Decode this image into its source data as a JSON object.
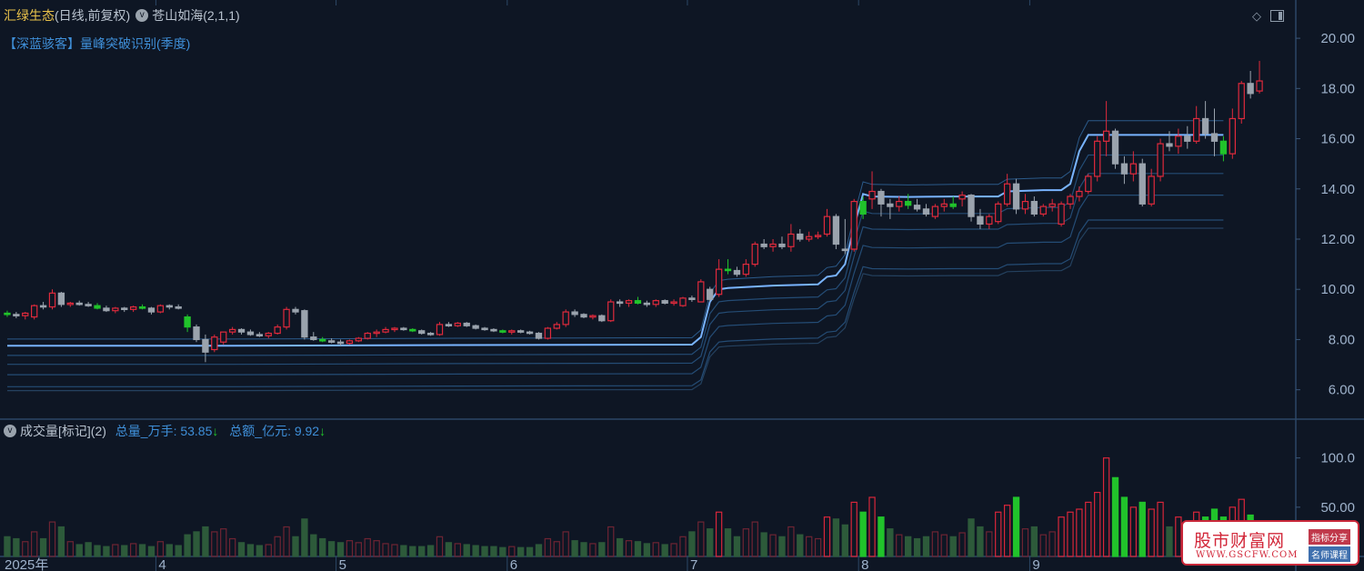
{
  "header": {
    "stock_name": "汇绿生态",
    "period": "(日线,前复权)",
    "indicator_main": "苍山如海(2,1,1)",
    "indicator_sub": "【深蓝骇客】量峰突破识别(季度)"
  },
  "volume_header": {
    "title": "成交量[标记](2)",
    "total_volume": "总量_万手: 53.85",
    "total_amount": "总额_亿元: 9.92",
    "arrow": "↓"
  },
  "watermark": {
    "title": "股市财富网",
    "url": "WWW.GSCFW.COM",
    "tag1": "指标分享",
    "tag2": "名师课程"
  },
  "icons": {
    "diamond": "diamond-icon",
    "panel_toggle": "panel-toggle-icon",
    "circle": "circle-toggle-icon"
  },
  "colors": {
    "background": "#0e1624",
    "up": "#e02a3c",
    "down": "#21c32b",
    "flat": "#9aa3ad",
    "line": "#79b4ff",
    "stock_name": "#e8c14a"
  },
  "chart_data": {
    "type": "candlestick",
    "price_axis": {
      "ticks": [
        20.0,
        18.0,
        16.0,
        14.0,
        12.0,
        10.0,
        8.0,
        6.0
      ],
      "tick_labels": [
        "20.00",
        "18.00",
        "16.00",
        "14.00",
        "12.00",
        "10.00",
        "8.00",
        "6.00"
      ],
      "ylim": [
        5.3,
        20.8
      ]
    },
    "volume_axis": {
      "ticks": [
        100.0,
        50.0
      ],
      "tick_labels": [
        "100.0",
        "50.00"
      ],
      "ylim": [
        0,
        120
      ]
    },
    "x_axis": {
      "labels": [
        "2025年",
        "4",
        "5",
        "6",
        "7",
        "8",
        "9"
      ],
      "label_bar_index": [
        0,
        17,
        37,
        56,
        76,
        95,
        114
      ]
    },
    "bars": [
      [
        9.05,
        9.15,
        8.9,
        9.0,
        20
      ],
      [
        9.0,
        9.1,
        8.85,
        8.95,
        18
      ],
      [
        8.95,
        9.1,
        8.8,
        9.05,
        15
      ],
      [
        8.9,
        9.4,
        8.8,
        9.35,
        25
      ],
      [
        9.35,
        9.5,
        9.2,
        9.3,
        18
      ],
      [
        9.3,
        10.0,
        9.2,
        9.85,
        35
      ],
      [
        9.85,
        9.9,
        9.3,
        9.4,
        30
      ],
      [
        9.4,
        9.5,
        9.3,
        9.45,
        15
      ],
      [
        9.45,
        9.55,
        9.35,
        9.4,
        12
      ],
      [
        9.4,
        9.5,
        9.3,
        9.35,
        14
      ],
      [
        9.35,
        9.45,
        9.2,
        9.25,
        11
      ],
      [
        9.25,
        9.35,
        9.1,
        9.15,
        10
      ],
      [
        9.15,
        9.3,
        9.05,
        9.25,
        12
      ],
      [
        9.25,
        9.3,
        9.1,
        9.2,
        11
      ],
      [
        9.2,
        9.35,
        9.1,
        9.3,
        13
      ],
      [
        9.3,
        9.4,
        9.2,
        9.25,
        12
      ],
      [
        9.25,
        9.3,
        9.0,
        9.1,
        10
      ],
      [
        9.1,
        9.4,
        9.05,
        9.35,
        15
      ],
      [
        9.35,
        9.4,
        9.2,
        9.3,
        12
      ],
      [
        9.3,
        9.4,
        9.2,
        9.25,
        11
      ],
      [
        8.9,
        9.0,
        8.3,
        8.5,
        22
      ],
      [
        8.5,
        8.6,
        7.9,
        8.0,
        25
      ],
      [
        8.0,
        8.2,
        7.1,
        7.5,
        30
      ],
      [
        7.6,
        8.2,
        7.5,
        8.1,
        25
      ],
      [
        7.9,
        8.3,
        7.8,
        8.3,
        28
      ],
      [
        8.3,
        8.5,
        8.2,
        8.4,
        18
      ],
      [
        8.4,
        8.45,
        8.2,
        8.3,
        14
      ],
      [
        8.3,
        8.4,
        8.15,
        8.2,
        12
      ],
      [
        8.2,
        8.3,
        8.1,
        8.15,
        11
      ],
      [
        8.15,
        8.3,
        8.05,
        8.25,
        12
      ],
      [
        8.25,
        8.6,
        8.2,
        8.5,
        20
      ],
      [
        8.5,
        9.3,
        8.4,
        9.2,
        30
      ],
      [
        9.2,
        9.3,
        9.0,
        9.1,
        20
      ],
      [
        9.15,
        9.2,
        8.0,
        8.1,
        38
      ],
      [
        8.1,
        8.3,
        7.95,
        8.0,
        22
      ],
      [
        8.0,
        8.1,
        7.9,
        7.95,
        18
      ],
      [
        7.95,
        8.05,
        7.85,
        7.9,
        15
      ],
      [
        7.9,
        8.0,
        7.75,
        7.85,
        14
      ],
      [
        7.85,
        8.0,
        7.8,
        7.95,
        16
      ],
      [
        7.95,
        8.1,
        7.9,
        8.05,
        14
      ],
      [
        8.05,
        8.3,
        8.0,
        8.25,
        18
      ],
      [
        8.25,
        8.4,
        8.1,
        8.3,
        16
      ],
      [
        8.3,
        8.5,
        8.25,
        8.4,
        13
      ],
      [
        8.4,
        8.5,
        8.3,
        8.45,
        12
      ],
      [
        8.45,
        8.5,
        8.35,
        8.4,
        11
      ],
      [
        8.4,
        8.45,
        8.3,
        8.35,
        10
      ],
      [
        8.35,
        8.4,
        8.2,
        8.25,
        10
      ],
      [
        8.25,
        8.3,
        8.15,
        8.2,
        11
      ],
      [
        8.2,
        8.7,
        8.15,
        8.6,
        20
      ],
      [
        8.6,
        8.7,
        8.5,
        8.55,
        14
      ],
      [
        8.55,
        8.7,
        8.5,
        8.65,
        13
      ],
      [
        8.65,
        8.7,
        8.5,
        8.55,
        12
      ],
      [
        8.55,
        8.6,
        8.4,
        8.45,
        11
      ],
      [
        8.45,
        8.5,
        8.35,
        8.4,
        10
      ],
      [
        8.4,
        8.45,
        8.3,
        8.35,
        10
      ],
      [
        8.35,
        8.4,
        8.25,
        8.3,
        9
      ],
      [
        8.3,
        8.4,
        8.2,
        8.35,
        10
      ],
      [
        8.35,
        8.4,
        8.25,
        8.3,
        9
      ],
      [
        8.3,
        8.35,
        8.2,
        8.25,
        9
      ],
      [
        8.25,
        8.3,
        8.0,
        8.05,
        12
      ],
      [
        8.05,
        8.5,
        8.0,
        8.45,
        18
      ],
      [
        8.45,
        8.7,
        8.4,
        8.6,
        15
      ],
      [
        8.6,
        9.2,
        8.5,
        9.1,
        25
      ],
      [
        9.1,
        9.2,
        8.9,
        9.0,
        16
      ],
      [
        9.0,
        9.05,
        8.85,
        8.9,
        14
      ],
      [
        8.9,
        9.0,
        8.8,
        8.95,
        13
      ],
      [
        8.95,
        9.0,
        8.7,
        8.75,
        14
      ],
      [
        8.75,
        9.6,
        8.7,
        9.5,
        30
      ],
      [
        9.5,
        9.6,
        9.3,
        9.45,
        18
      ],
      [
        9.45,
        9.6,
        9.3,
        9.55,
        16
      ],
      [
        9.55,
        9.7,
        9.4,
        9.45,
        15
      ],
      [
        9.45,
        9.55,
        9.3,
        9.4,
        13
      ],
      [
        9.4,
        9.6,
        9.3,
        9.55,
        14
      ],
      [
        9.55,
        9.6,
        9.4,
        9.45,
        12
      ],
      [
        9.45,
        9.6,
        9.35,
        9.5,
        13
      ],
      [
        9.35,
        9.7,
        9.3,
        9.65,
        20
      ],
      [
        9.65,
        9.75,
        9.5,
        9.6,
        25
      ],
      [
        9.5,
        10.4,
        9.5,
        10.3,
        35
      ],
      [
        10.0,
        10.1,
        9.5,
        9.6,
        28
      ],
      [
        9.8,
        11.2,
        9.7,
        10.8,
        45
      ],
      [
        10.8,
        11.2,
        10.6,
        10.75,
        28
      ],
      [
        10.75,
        10.9,
        10.5,
        10.6,
        20
      ],
      [
        10.6,
        11.2,
        10.5,
        11.0,
        28
      ],
      [
        11.0,
        11.9,
        10.9,
        11.8,
        35
      ],
      [
        11.8,
        12.0,
        11.6,
        11.7,
        24
      ],
      [
        11.7,
        12.0,
        11.5,
        11.8,
        22
      ],
      [
        11.8,
        12.1,
        11.6,
        11.7,
        20
      ],
      [
        11.7,
        12.6,
        11.5,
        12.2,
        30
      ],
      [
        12.2,
        12.4,
        11.9,
        12.0,
        22
      ],
      [
        12.0,
        12.3,
        11.9,
        12.1,
        20
      ],
      [
        12.1,
        12.3,
        12.0,
        12.15,
        18
      ],
      [
        12.2,
        13.2,
        12.1,
        12.9,
        40
      ],
      [
        12.9,
        13.0,
        11.6,
        11.8,
        38
      ],
      [
        11.6,
        12.8,
        11.4,
        11.6,
        32
      ],
      [
        11.6,
        13.6,
        11.5,
        13.5,
        55
      ],
      [
        13.5,
        13.7,
        12.8,
        13.0,
        45
      ],
      [
        13.6,
        14.7,
        13.2,
        13.9,
        60
      ],
      [
        13.9,
        14.0,
        12.9,
        13.4,
        40
      ],
      [
        13.4,
        13.6,
        12.8,
        13.3,
        28
      ],
      [
        13.3,
        13.7,
        13.1,
        13.5,
        22
      ],
      [
        13.5,
        13.8,
        13.2,
        13.35,
        20
      ],
      [
        13.35,
        13.6,
        13.1,
        13.2,
        18
      ],
      [
        13.2,
        13.4,
        12.9,
        13.0,
        20
      ],
      [
        12.9,
        13.4,
        12.8,
        13.3,
        25
      ],
      [
        13.3,
        13.6,
        13.1,
        13.4,
        22
      ],
      [
        13.4,
        13.7,
        13.2,
        13.3,
        20
      ],
      [
        13.6,
        13.9,
        13.3,
        13.75,
        24
      ],
      [
        13.75,
        13.8,
        12.7,
        12.9,
        38
      ],
      [
        12.9,
        13.2,
        12.4,
        12.6,
        30
      ],
      [
        12.6,
        13.0,
        12.4,
        12.9,
        25
      ],
      [
        12.7,
        13.5,
        12.6,
        13.4,
        45
      ],
      [
        13.4,
        14.6,
        13.3,
        14.2,
        52
      ],
      [
        14.2,
        14.4,
        13.0,
        13.2,
        60
      ],
      [
        13.2,
        13.8,
        13.0,
        13.5,
        28
      ],
      [
        13.5,
        13.7,
        12.9,
        13.0,
        30
      ],
      [
        13.0,
        13.4,
        12.9,
        13.3,
        22
      ],
      [
        13.3,
        13.6,
        13.1,
        13.4,
        25
      ],
      [
        12.6,
        13.5,
        12.5,
        13.4,
        40
      ],
      [
        13.4,
        13.8,
        13.2,
        13.7,
        45
      ],
      [
        13.7,
        14.1,
        13.5,
        13.9,
        48
      ],
      [
        13.9,
        14.6,
        13.8,
        14.5,
        55
      ],
      [
        14.5,
        16.1,
        14.3,
        15.9,
        65
      ],
      [
        15.9,
        17.5,
        15.3,
        16.3,
        100
      ],
      [
        16.3,
        16.4,
        14.8,
        15.0,
        80
      ],
      [
        15.0,
        15.3,
        14.2,
        14.6,
        60
      ],
      [
        14.6,
        15.5,
        14.3,
        15.0,
        50
      ],
      [
        15.0,
        15.2,
        13.3,
        13.4,
        55
      ],
      [
        13.4,
        14.8,
        13.3,
        14.5,
        48
      ],
      [
        14.5,
        16.0,
        14.3,
        15.8,
        55
      ],
      [
        15.8,
        16.3,
        15.5,
        15.7,
        30
      ],
      [
        15.7,
        16.4,
        15.4,
        16.1,
        40
      ],
      [
        16.1,
        16.5,
        15.6,
        15.9,
        32
      ],
      [
        15.9,
        17.3,
        15.8,
        16.8,
        45
      ],
      [
        16.8,
        17.5,
        16.0,
        16.2,
        40
      ],
      [
        16.2,
        17.2,
        15.3,
        15.9,
        48
      ],
      [
        15.9,
        16.1,
        15.1,
        15.4,
        40
      ],
      [
        15.4,
        17.2,
        15.2,
        16.8,
        50
      ],
      [
        16.8,
        18.3,
        16.6,
        18.2,
        58
      ],
      [
        18.2,
        18.7,
        17.6,
        17.8,
        42
      ],
      [
        17.9,
        19.1,
        17.8,
        18.3,
        30
      ]
    ],
    "overlay_lines": {
      "name": "苍山如海",
      "segments": [
        [
          0,
          7.75
        ],
        [
          25,
          7.75
        ],
        [
          50,
          7.78
        ],
        [
          76,
          7.8
        ],
        [
          77,
          8.1
        ],
        [
          78,
          9.5
        ],
        [
          79,
          10.0
        ],
        [
          80,
          10.05
        ],
        [
          85,
          10.15
        ],
        [
          90,
          10.2
        ],
        [
          91,
          10.5
        ],
        [
          92,
          10.55
        ],
        [
          93,
          11.0
        ],
        [
          94,
          12.5
        ],
        [
          95,
          13.8
        ],
        [
          96,
          13.7
        ],
        [
          100,
          13.68
        ],
        [
          105,
          13.7
        ],
        [
          110,
          13.7
        ],
        [
          111,
          13.9
        ],
        [
          115,
          13.95
        ],
        [
          117,
          13.95
        ],
        [
          118,
          14.2
        ],
        [
          119,
          15.5
        ],
        [
          120,
          16.15
        ],
        [
          125,
          16.15
        ],
        [
          130,
          16.15
        ],
        [
          135,
          16.15
        ]
      ]
    }
  }
}
